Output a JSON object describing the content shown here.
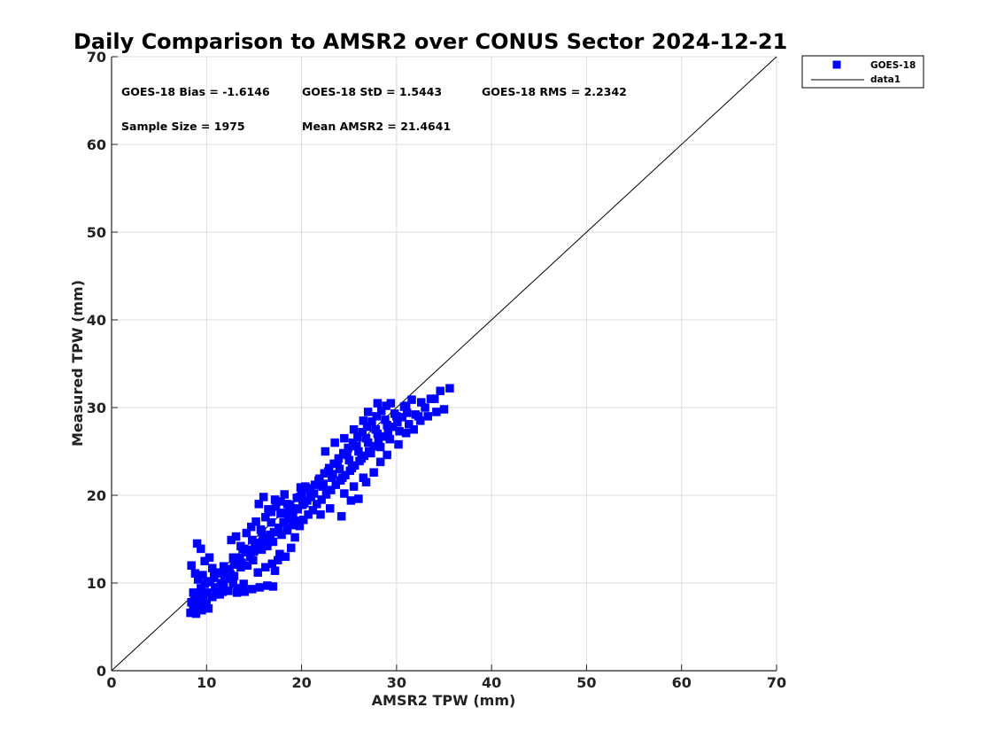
{
  "chart_data": {
    "type": "scatter",
    "title": "Daily Comparison to AMSR2 over CONUS Sector 2024-12-21",
    "xlabel": "AMSR2 TPW (mm)",
    "ylabel": "Measured TPW (mm)",
    "xlim": [
      0,
      70
    ],
    "ylim": [
      0,
      70
    ],
    "xticks": [
      "0",
      "10",
      "20",
      "30",
      "40",
      "50",
      "60",
      "70"
    ],
    "yticks": [
      "0",
      "10",
      "20",
      "30",
      "40",
      "50",
      "60",
      "70"
    ],
    "grid": true,
    "legend_position": "outside top-right",
    "stats": {
      "bias": "GOES-18 Bias = -1.6146",
      "std": "GOES-18 StD = 1.5443",
      "rms": "GOES-18 RMS = 2.2342",
      "sample": "Sample Size = 1975",
      "mean": "Mean AMSR2 = 21.4641"
    },
    "series": [
      {
        "name": "GOES-18",
        "marker": "square",
        "color": "#0000ff",
        "points": [
          [
            8.3,
            6.6
          ],
          [
            8.6,
            7.0
          ],
          [
            8.9,
            6.5
          ],
          [
            9.2,
            7.3
          ],
          [
            9.5,
            6.9
          ],
          [
            9.9,
            7.6
          ],
          [
            10.2,
            7.1
          ],
          [
            8.4,
            7.8
          ],
          [
            8.8,
            8.2
          ],
          [
            9.3,
            8.6
          ],
          [
            9.7,
            8.0
          ],
          [
            10.1,
            8.9
          ],
          [
            10.6,
            8.4
          ],
          [
            11.0,
            9.2
          ],
          [
            11.4,
            8.7
          ],
          [
            11.8,
            9.6
          ],
          [
            12.3,
            9.1
          ],
          [
            12.8,
            9.9
          ],
          [
            13.3,
            9.4
          ],
          [
            13.9,
            9.9
          ],
          [
            8.4,
            12.0
          ],
          [
            8.8,
            11.1
          ],
          [
            9.0,
            14.5
          ],
          [
            9.4,
            13.9
          ],
          [
            9.8,
            12.5
          ],
          [
            10.3,
            12.9
          ],
          [
            10.6,
            11.7
          ],
          [
            9.1,
            10.4
          ],
          [
            9.6,
            10.9
          ],
          [
            10.1,
            10.1
          ],
          [
            10.8,
            10.6
          ],
          [
            11.3,
            11.2
          ],
          [
            11.9,
            10.8
          ],
          [
            12.4,
            11.6
          ],
          [
            12.9,
            12.1
          ],
          [
            13.5,
            12.9
          ],
          [
            14.1,
            13.5
          ],
          [
            14.6,
            13.0
          ],
          [
            15.1,
            14.1
          ],
          [
            15.6,
            14.6
          ],
          [
            16.1,
            15.2
          ],
          [
            16.6,
            14.9
          ],
          [
            17.1,
            15.8
          ],
          [
            17.6,
            16.3
          ],
          [
            18.1,
            16.9
          ],
          [
            18.6,
            17.4
          ],
          [
            19.1,
            17.9
          ],
          [
            19.6,
            18.4
          ],
          [
            20.1,
            18.9
          ],
          [
            20.6,
            19.4
          ],
          [
            12.6,
            14.9
          ],
          [
            13.1,
            15.3
          ],
          [
            13.6,
            14.2
          ],
          [
            14.2,
            15.7
          ],
          [
            14.7,
            16.4
          ],
          [
            15.2,
            17.0
          ],
          [
            15.7,
            16.1
          ],
          [
            16.2,
            17.5
          ],
          [
            16.8,
            18.1
          ],
          [
            17.3,
            18.7
          ],
          [
            17.8,
            19.3
          ],
          [
            18.2,
            20.1
          ],
          [
            15.5,
            19.0
          ],
          [
            16.0,
            19.8
          ],
          [
            16.5,
            18.4
          ],
          [
            13.2,
            8.9
          ],
          [
            14.0,
            9.0
          ],
          [
            14.8,
            9.3
          ],
          [
            15.6,
            9.5
          ],
          [
            16.4,
            9.7
          ],
          [
            17.0,
            9.6
          ],
          [
            17.2,
            11.4
          ],
          [
            16.9,
            12.2
          ],
          [
            17.7,
            13.3
          ],
          [
            18.3,
            13.0
          ],
          [
            18.9,
            14.0
          ],
          [
            19.3,
            15.2
          ],
          [
            17.5,
            12.6
          ],
          [
            16.2,
            11.8
          ],
          [
            15.4,
            11.2
          ],
          [
            12.0,
            10.5
          ],
          [
            12.5,
            11.0
          ],
          [
            11.5,
            10.0
          ],
          [
            10.9,
            9.5
          ],
          [
            11.2,
            8.7
          ],
          [
            11.7,
            9.0
          ],
          [
            13.7,
            12.3
          ],
          [
            14.3,
            12.0
          ],
          [
            14.9,
            12.6
          ],
          [
            15.8,
            13.8
          ],
          [
            16.4,
            14.2
          ],
          [
            17.0,
            14.7
          ],
          [
            17.9,
            15.5
          ],
          [
            18.5,
            16.0
          ],
          [
            19.0,
            16.6
          ],
          [
            19.4,
            17.1
          ],
          [
            19.8,
            16.5
          ],
          [
            20.2,
            17.2
          ],
          [
            20.7,
            17.8
          ],
          [
            21.2,
            18.3
          ],
          [
            19.9,
            20.9
          ],
          [
            20.4,
            21.0
          ],
          [
            20.9,
            20.4
          ],
          [
            21.4,
            21.2
          ],
          [
            21.9,
            21.9
          ],
          [
            22.4,
            22.5
          ],
          [
            22.9,
            23.1
          ],
          [
            23.4,
            23.6
          ],
          [
            23.9,
            24.2
          ],
          [
            24.4,
            24.8
          ],
          [
            24.9,
            25.4
          ],
          [
            25.4,
            26.0
          ],
          [
            25.9,
            26.6
          ],
          [
            26.4,
            27.2
          ],
          [
            26.9,
            27.8
          ],
          [
            27.4,
            28.4
          ],
          [
            27.9,
            29.0
          ],
          [
            28.4,
            29.6
          ],
          [
            28.9,
            30.2
          ],
          [
            29.4,
            30.5
          ],
          [
            21.6,
            19.0
          ],
          [
            22.1,
            19.5
          ],
          [
            22.6,
            20.1
          ],
          [
            23.1,
            20.6
          ],
          [
            23.6,
            21.2
          ],
          [
            24.1,
            21.7
          ],
          [
            24.6,
            22.3
          ],
          [
            25.1,
            22.8
          ],
          [
            25.6,
            23.4
          ],
          [
            26.1,
            23.9
          ],
          [
            26.6,
            24.5
          ],
          [
            27.1,
            25.0
          ],
          [
            27.6,
            25.6
          ],
          [
            28.1,
            26.1
          ],
          [
            28.6,
            26.7
          ],
          [
            29.1,
            27.2
          ],
          [
            29.6,
            27.8
          ],
          [
            30.1,
            28.3
          ],
          [
            30.6,
            28.9
          ],
          [
            31.1,
            29.4
          ],
          [
            22.0,
            17.8
          ],
          [
            23.0,
            18.5
          ],
          [
            24.2,
            17.6
          ],
          [
            25.2,
            19.4
          ],
          [
            26.0,
            19.6
          ],
          [
            26.8,
            21.5
          ],
          [
            27.6,
            22.6
          ],
          [
            28.3,
            23.8
          ],
          [
            29.0,
            24.6
          ],
          [
            30.2,
            25.8
          ],
          [
            31.0,
            27.1
          ],
          [
            31.8,
            27.5
          ],
          [
            32.5,
            28.5
          ],
          [
            33.3,
            29.0
          ],
          [
            34.2,
            29.5
          ],
          [
            35.0,
            29.8
          ],
          [
            35.6,
            32.2
          ],
          [
            34.6,
            31.9
          ],
          [
            33.6,
            31.0
          ],
          [
            32.6,
            30.6
          ],
          [
            31.6,
            30.9
          ],
          [
            30.8,
            30.1
          ],
          [
            29.8,
            29.3
          ],
          [
            28.8,
            28.6
          ],
          [
            27.8,
            27.5
          ],
          [
            26.8,
            26.5
          ],
          [
            25.8,
            25.6
          ],
          [
            24.8,
            24.6
          ],
          [
            23.8,
            23.6
          ],
          [
            22.8,
            22.7
          ],
          [
            21.8,
            21.7
          ],
          [
            20.8,
            20.8
          ],
          [
            19.8,
            19.8
          ],
          [
            18.8,
            18.9
          ],
          [
            17.8,
            17.9
          ],
          [
            16.8,
            16.9
          ],
          [
            15.8,
            15.9
          ],
          [
            14.8,
            14.9
          ],
          [
            13.8,
            13.9
          ],
          [
            12.8,
            12.9
          ],
          [
            11.8,
            11.9
          ],
          [
            10.8,
            11.0
          ],
          [
            9.8,
            9.9
          ],
          [
            22.5,
            25.0
          ],
          [
            23.5,
            26.0
          ],
          [
            24.5,
            26.5
          ],
          [
            25.5,
            27.5
          ],
          [
            26.5,
            28.5
          ],
          [
            27.0,
            29.5
          ],
          [
            28.0,
            30.5
          ],
          [
            18.5,
            19.0
          ],
          [
            19.2,
            18.5
          ],
          [
            20.0,
            20.0
          ],
          [
            21.0,
            19.8
          ],
          [
            22.2,
            21.0
          ],
          [
            23.2,
            22.0
          ],
          [
            24.0,
            23.0
          ],
          [
            25.0,
            24.0
          ],
          [
            26.0,
            25.0
          ],
          [
            27.0,
            26.0
          ],
          [
            28.0,
            27.0
          ],
          [
            29.0,
            28.0
          ],
          [
            30.0,
            29.0
          ],
          [
            31.0,
            30.2
          ],
          [
            32.0,
            29.2
          ],
          [
            33.0,
            30.0
          ],
          [
            34.0,
            31.0
          ],
          [
            24.5,
            20.2
          ],
          [
            25.5,
            21.0
          ],
          [
            26.5,
            22.0
          ],
          [
            20.3,
            19.1
          ],
          [
            21.3,
            20.2
          ],
          [
            22.3,
            21.3
          ],
          [
            23.3,
            22.4
          ],
          [
            24.3,
            22.0
          ],
          [
            25.3,
            23.1
          ],
          [
            26.3,
            24.2
          ],
          [
            27.3,
            24.8
          ],
          [
            28.3,
            25.5
          ],
          [
            29.3,
            26.4
          ],
          [
            30.3,
            27.3
          ],
          [
            31.3,
            28.1
          ],
          [
            32.3,
            29.0
          ],
          [
            17.2,
            19.5
          ],
          [
            18.0,
            18.0
          ],
          [
            18.7,
            18.3
          ],
          [
            19.5,
            19.7
          ],
          [
            16.7,
            15.5
          ],
          [
            15.9,
            15.0
          ],
          [
            15.0,
            13.6
          ],
          [
            14.4,
            13.8
          ],
          [
            13.6,
            11.8
          ],
          [
            12.9,
            10.8
          ],
          [
            12.2,
            11.5
          ],
          [
            11.5,
            11.1
          ],
          [
            10.4,
            10.2
          ],
          [
            9.4,
            9.4
          ],
          [
            8.6,
            8.9
          ],
          [
            9.0,
            8.3
          ],
          [
            10.0,
            7.5
          ]
        ]
      },
      {
        "name": "data1",
        "style": "line",
        "color": "#000000",
        "points": [
          [
            0,
            0
          ],
          [
            70,
            70
          ]
        ]
      }
    ]
  }
}
